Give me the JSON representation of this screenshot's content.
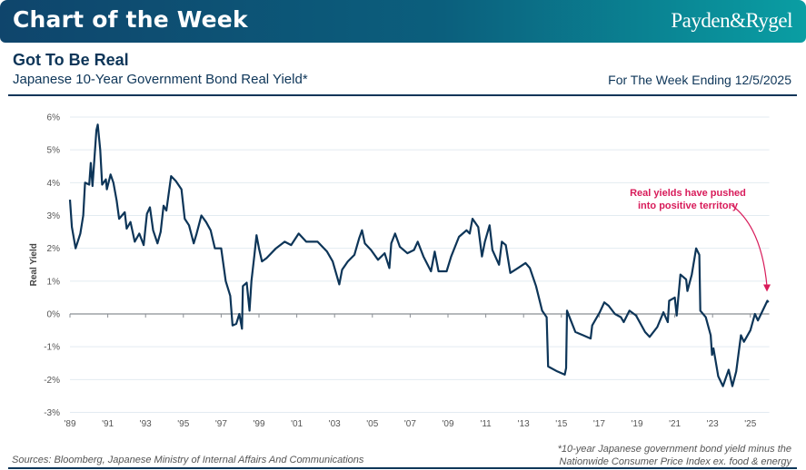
{
  "header": {
    "banner_title": "Chart of the Week",
    "logo_text": "Payden&Rygel"
  },
  "title": "Got To Be Real",
  "subtitle": "Japanese 10-Year Government Bond Real Yield*",
  "week_label": "For The Week Ending 12/5/2025",
  "sources": "Sources: Bloomberg, Japanese Ministry of Internal Affairs And Communications",
  "footnote": [
    "*10-year Japanese government bond yield minus the",
    "Nationwide Consumer Price Index ex. food & energy"
  ],
  "colors": {
    "brand_dark": "#0f456c",
    "brand_teal": "#0a9ea3",
    "line": "#0d3558",
    "annotation": "#d81b5a"
  },
  "chart_data": {
    "type": "line",
    "title": "",
    "xlabel": "",
    "ylabel": "Real Yield",
    "xlim": [
      1989,
      2026
    ],
    "ylim": [
      -3,
      6
    ],
    "grid": "horizontal",
    "x_tick_labels": [
      "'89",
      "'91",
      "'93",
      "'95",
      "'97",
      "'99",
      "'01",
      "'03",
      "'05",
      "'07",
      "'09",
      "'11",
      "'13",
      "'15",
      "'17",
      "'19",
      "'21",
      "'23",
      "'25"
    ],
    "y_tick_labels": [
      "6%",
      "5%",
      "4%",
      "3%",
      "2%",
      "1%",
      "0%",
      "-1%",
      "-2%",
      "-3%"
    ],
    "annotation": {
      "text": [
        "Real yields have pushed",
        "into positive territory"
      ],
      "x": 2025.9,
      "y": 0.4
    },
    "series": [
      {
        "x": [
          1989.0,
          1989.1,
          1989.3,
          1989.55,
          1989.7,
          1989.8,
          1990.02,
          1990.1,
          1990.19,
          1990.4,
          1990.47,
          1990.6,
          1990.7,
          1990.9,
          1990.95,
          1991.15,
          1991.3,
          1991.47,
          1991.6,
          1991.9,
          1992.0,
          1992.2,
          1992.43,
          1992.67,
          1992.9,
          1993.07,
          1993.23,
          1993.4,
          1993.63,
          1993.8,
          1993.95,
          1994.1,
          1994.35,
          1994.6,
          1994.9,
          1995.07,
          1995.3,
          1995.55,
          1995.7,
          1995.95,
          1996.2,
          1996.44,
          1996.67,
          1997.0,
          1997.24,
          1997.48,
          1997.6,
          1997.8,
          1997.96,
          1998.1,
          1998.15,
          1998.35,
          1998.5,
          1998.6,
          1998.76,
          1998.87,
          1999.0,
          1999.16,
          1999.4,
          1999.9,
          2000.36,
          2000.7,
          2001.1,
          2001.5,
          2002.1,
          2002.6,
          2002.9,
          2003.25,
          2003.4,
          2003.7,
          2004.05,
          2004.3,
          2004.45,
          2004.6,
          2004.93,
          2005.3,
          2005.65,
          2005.9,
          2006.0,
          2006.2,
          2006.45,
          2006.85,
          2007.2,
          2007.4,
          2007.7,
          2008.1,
          2008.3,
          2008.5,
          2008.93,
          2009.17,
          2009.58,
          2009.98,
          2010.15,
          2010.3,
          2010.6,
          2010.8,
          2010.95,
          2011.2,
          2011.35,
          2011.7,
          2011.85,
          2012.06,
          2012.3,
          2012.7,
          2013.1,
          2013.33,
          2013.66,
          2013.98,
          2014.22,
          2014.3,
          2014.78,
          2015.18,
          2015.25,
          2015.3,
          2015.5,
          2015.74,
          2016.15,
          2016.55,
          2016.63,
          2017.03,
          2017.27,
          2017.5,
          2017.83,
          2018.15,
          2018.3,
          2018.6,
          2018.95,
          2019.43,
          2019.67,
          2020.07,
          2020.4,
          2020.63,
          2020.7,
          2021.0,
          2021.1,
          2021.3,
          2021.6,
          2021.67,
          2021.9,
          2022.13,
          2022.3,
          2022.35,
          2022.64,
          2022.9,
          2022.97,
          2023.05,
          2023.3,
          2023.55,
          2023.85,
          2024.05,
          2024.25,
          2024.5,
          2024.66,
          2025.0,
          2025.24,
          2025.4,
          2025.65,
          2025.9,
          2025.95
        ],
        "values": [
          3.48,
          2.65,
          2.0,
          2.45,
          3.0,
          4.0,
          3.94,
          4.6,
          3.9,
          5.6,
          5.77,
          5.0,
          3.94,
          4.1,
          3.8,
          4.25,
          4.0,
          3.45,
          2.9,
          3.1,
          2.6,
          2.8,
          2.2,
          2.45,
          2.1,
          3.05,
          3.25,
          2.55,
          2.15,
          2.5,
          3.3,
          3.15,
          4.2,
          4.05,
          3.8,
          2.9,
          2.7,
          2.15,
          2.45,
          3.0,
          2.8,
          2.55,
          2.0,
          2.0,
          1.0,
          0.55,
          -0.35,
          -0.3,
          0.0,
          -0.45,
          0.85,
          0.95,
          0.1,
          1.0,
          1.8,
          2.4,
          2.0,
          1.6,
          1.7,
          2.0,
          2.2,
          2.1,
          2.45,
          2.2,
          2.2,
          1.9,
          1.6,
          0.9,
          1.35,
          1.6,
          1.8,
          2.3,
          2.55,
          2.15,
          1.95,
          1.65,
          1.85,
          1.4,
          2.15,
          2.45,
          2.05,
          1.85,
          1.95,
          2.2,
          1.75,
          1.3,
          1.9,
          1.3,
          1.3,
          1.75,
          2.35,
          2.55,
          2.45,
          2.9,
          2.65,
          1.75,
          2.2,
          2.7,
          1.95,
          1.5,
          2.2,
          2.1,
          1.25,
          1.4,
          1.55,
          1.4,
          0.85,
          0.1,
          -0.1,
          -1.6,
          -1.75,
          -1.85,
          -1.65,
          0.1,
          -0.2,
          -0.55,
          -0.65,
          -0.75,
          -0.35,
          0.05,
          0.35,
          0.25,
          0.0,
          -0.1,
          -0.25,
          0.1,
          -0.05,
          -0.55,
          -0.7,
          -0.4,
          0.05,
          -0.25,
          0.4,
          0.5,
          -0.05,
          1.2,
          1.05,
          0.7,
          1.2,
          2.0,
          1.8,
          0.1,
          -0.1,
          -0.65,
          -1.25,
          -1.05,
          -1.9,
          -2.2,
          -1.7,
          -2.2,
          -1.75,
          -0.65,
          -0.85,
          -0.5,
          0.0,
          -0.2,
          0.1,
          0.4,
          0.35
        ]
      }
    ]
  }
}
